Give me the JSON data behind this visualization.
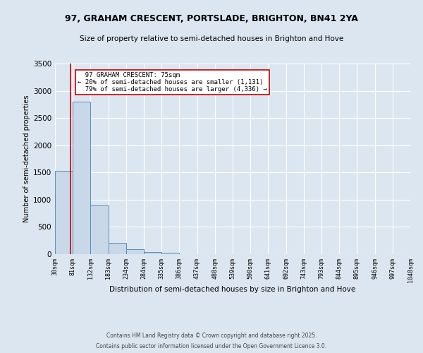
{
  "title_line1": "97, GRAHAM CRESCENT, PORTSLADE, BRIGHTON, BN41 2YA",
  "title_line2": "Size of property relative to semi-detached houses in Brighton and Hove",
  "xlabel": "Distribution of semi-detached houses by size in Brighton and Hove",
  "ylabel": "Number of semi-detached properties",
  "bar_edges": [
    30,
    81,
    132,
    183,
    234,
    284,
    335,
    386,
    437,
    488,
    539,
    590,
    641,
    692,
    743,
    793,
    844,
    895,
    946,
    997,
    1048
  ],
  "bar_heights": [
    1530,
    2800,
    900,
    210,
    85,
    40,
    20,
    5,
    3,
    2,
    1,
    1,
    0,
    0,
    0,
    0,
    0,
    0,
    0,
    0
  ],
  "bar_color": "#c8d8e8",
  "bar_edgecolor": "#5b8db8",
  "property_size": 75,
  "property_label": "97 GRAHAM CRESCENT: 75sqm",
  "pct_smaller": 20,
  "pct_larger": 79,
  "n_smaller": 1131,
  "n_larger": 4336,
  "vline_color": "#cc0000",
  "annotation_box_edgecolor": "#cc0000",
  "background_color": "#dce6f0",
  "grid_color": "#ffffff",
  "ylim": [
    0,
    3500
  ],
  "footnote1": "Contains HM Land Registry data © Crown copyright and database right 2025.",
  "footnote2": "Contains public sector information licensed under the Open Government Licence 3.0."
}
